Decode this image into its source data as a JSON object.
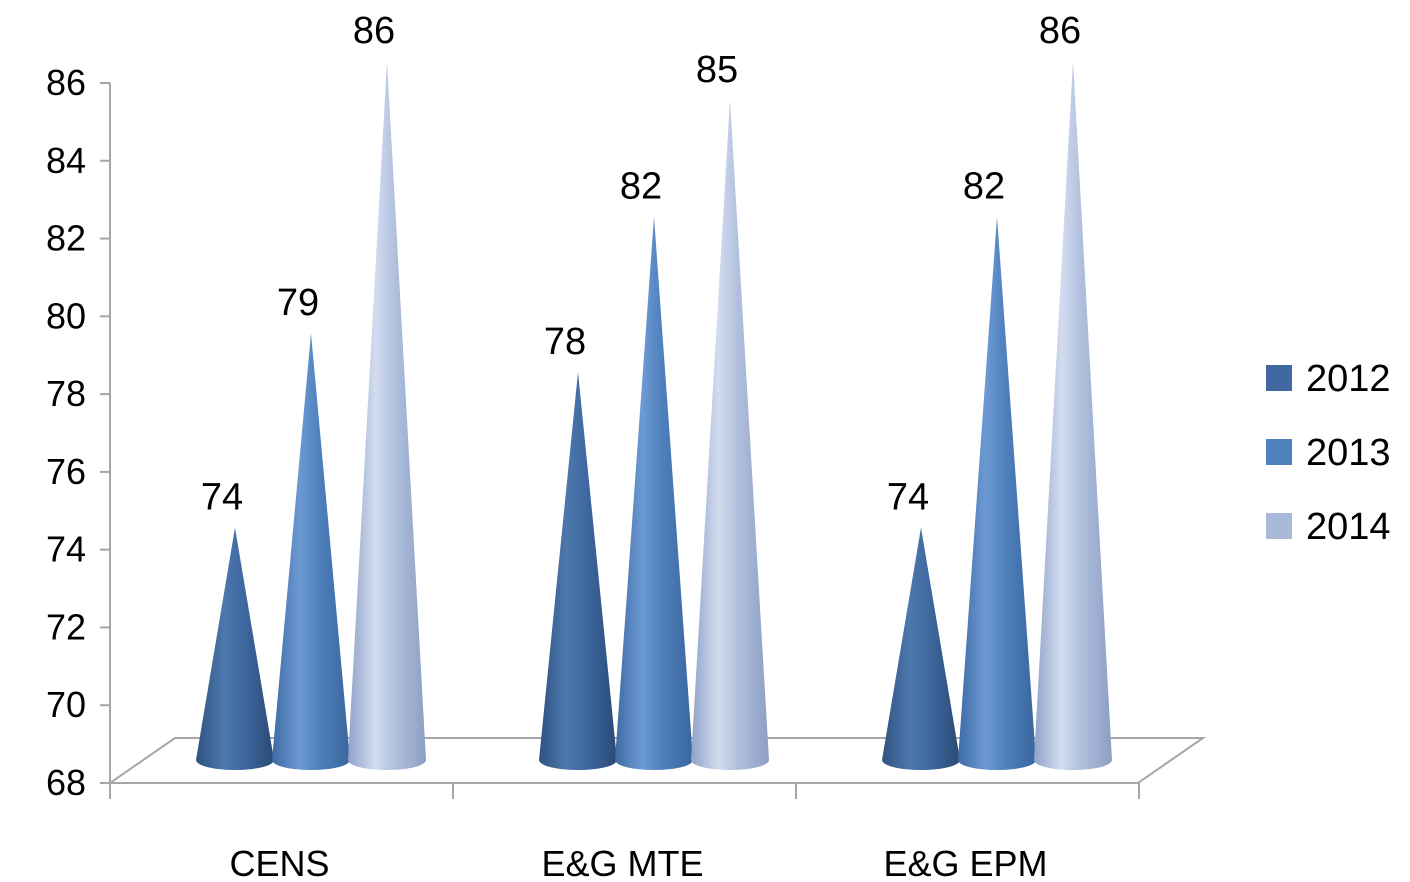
{
  "chart_data": {
    "type": "bar",
    "bar_shape": "cone",
    "categories": [
      "CENS",
      "E&G MTE",
      "E&G EPM"
    ],
    "series": [
      {
        "name": "2012",
        "values": [
          74,
          78,
          74
        ],
        "color": "#3f69a0"
      },
      {
        "name": "2013",
        "values": [
          79,
          82,
          82
        ],
        "color": "#4f81bd"
      },
      {
        "name": "2014",
        "values": [
          86,
          85,
          86
        ],
        "color": "#a9b9d9"
      }
    ],
    "title": "",
    "xlabel": "",
    "ylabel": "",
    "ylim": [
      68,
      86
    ],
    "yticks": [
      68,
      70,
      72,
      74,
      76,
      78,
      80,
      82,
      84,
      86
    ],
    "grid": false,
    "data_labels": true,
    "legend": {
      "position": "right"
    }
  }
}
